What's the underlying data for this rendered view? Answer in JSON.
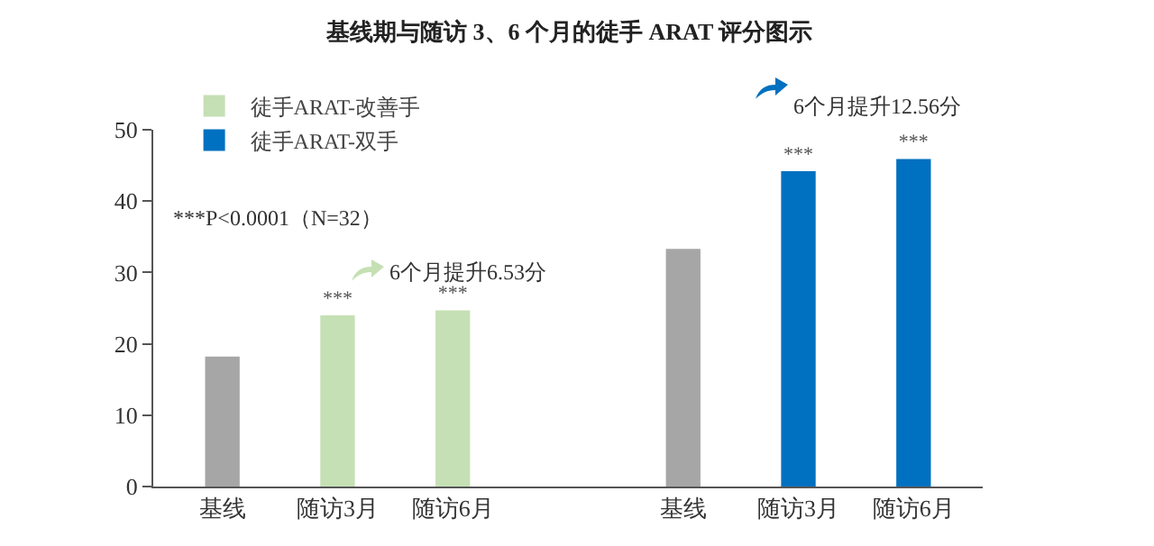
{
  "chart_data": {
    "type": "bar",
    "title": "基线期与随访 3、6 个月的徒手 ARAT 评分图示",
    "categories": [
      "基线",
      "随访3月",
      "随访6月",
      null,
      "基线",
      "随访3月",
      "随访6月"
    ],
    "series": [
      {
        "color": "#a6a6a6",
        "values": [
          18.2,
          null,
          null,
          null,
          33.3,
          null,
          null
        ]
      },
      {
        "name": "徒手ARAT-改善手",
        "color": "#c5e0b4",
        "values": [
          null,
          24.0,
          24.7,
          null,
          null,
          null,
          null
        ],
        "value_labels": [
          null,
          "***",
          "***",
          null,
          null,
          null,
          null
        ]
      },
      {
        "name": "徒手ARAT-双手",
        "color": "#0070c0",
        "values": [
          null,
          null,
          null,
          null,
          null,
          44.2,
          45.9
        ],
        "value_labels": [
          null,
          null,
          null,
          null,
          null,
          "***",
          "***"
        ]
      }
    ],
    "ylim": [
      0,
      50
    ],
    "yticks": [
      0,
      10,
      20,
      30,
      40,
      50
    ],
    "grid": false,
    "legend": "top left",
    "annotations": [
      "***P<0.0001（N=32）",
      "6个月提升6.53分",
      "6个月提升12.56分"
    ]
  }
}
